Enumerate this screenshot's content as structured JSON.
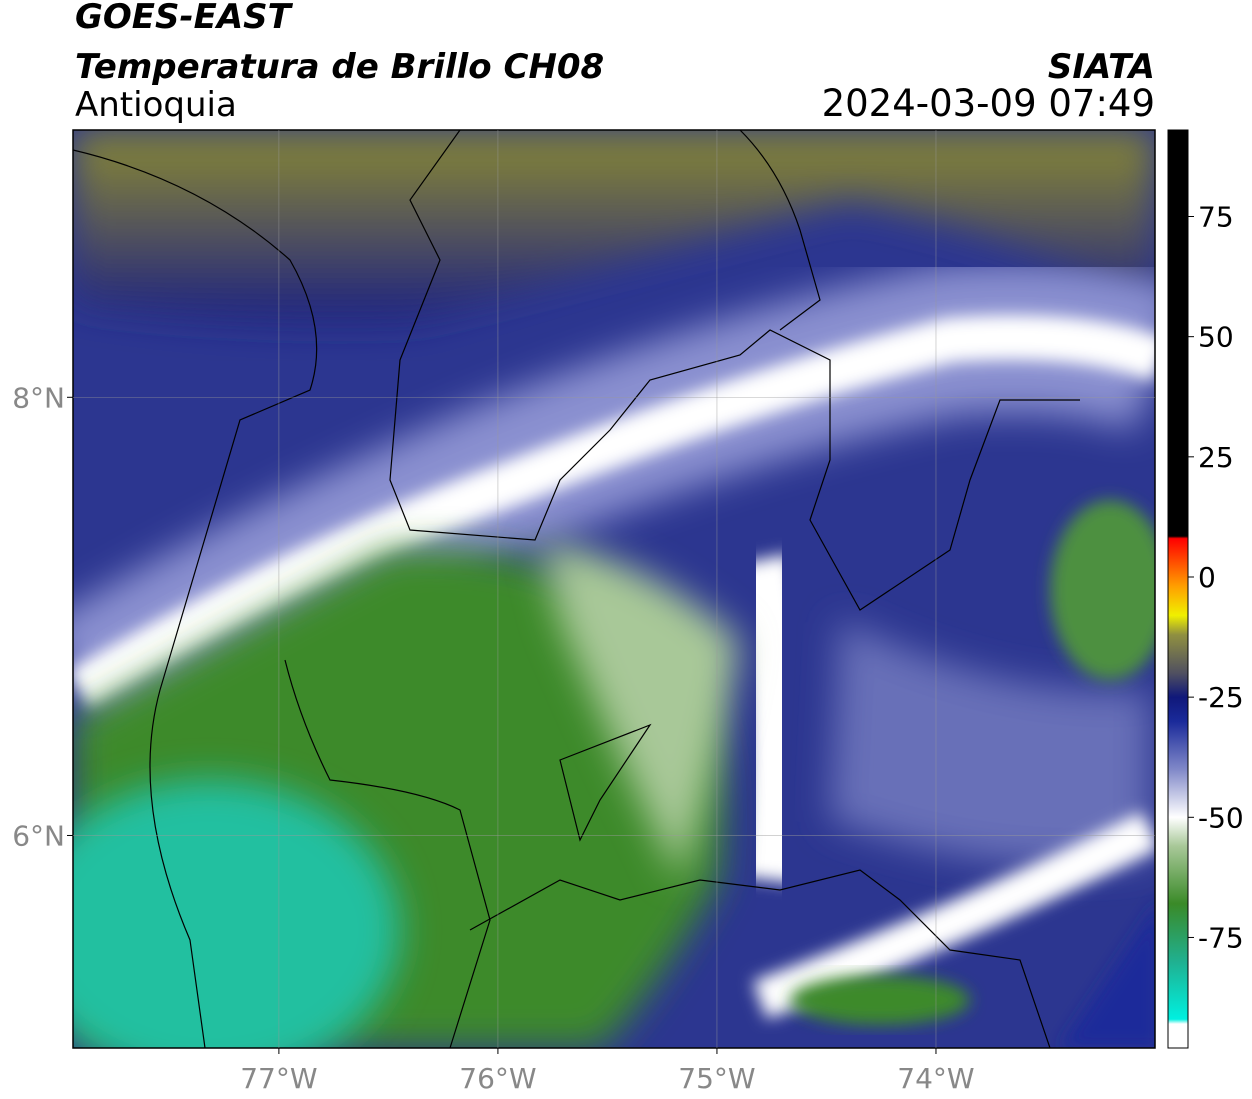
{
  "header": {
    "title": "GOES-EAST",
    "subtitle": "Temperatura de Brillo CH08",
    "region": "Antioquia",
    "source": "SIATA",
    "datetime": "2024-03-09 07:49"
  },
  "map": {
    "xlim": [
      -77.94,
      -73.0
    ],
    "ylim": [
      5.03,
      9.22
    ],
    "xticks": [
      {
        "value": -77,
        "label": "77°W"
      },
      {
        "value": -76,
        "label": "76°W"
      },
      {
        "value": -75,
        "label": "75°W"
      },
      {
        "value": -74,
        "label": "74°W"
      }
    ],
    "yticks": [
      {
        "value": 8,
        "label": "8°N"
      },
      {
        "value": 6,
        "label": "6°N"
      }
    ],
    "grid": true
  },
  "colorbar": {
    "lim": [
      -98,
      93
    ],
    "ticks": [
      75,
      50,
      25,
      0,
      -25,
      -50,
      -75
    ],
    "stops": [
      {
        "value": -98,
        "color": "#ffffff"
      },
      {
        "value": -93,
        "color": "#ffffff"
      },
      {
        "value": -92,
        "color": "#00f0e0"
      },
      {
        "value": -80,
        "color": "#20b090"
      },
      {
        "value": -68,
        "color": "#3a8a28"
      },
      {
        "value": -56,
        "color": "#a8c898"
      },
      {
        "value": -50,
        "color": "#ffffff"
      },
      {
        "value": -40,
        "color": "#8088c8"
      },
      {
        "value": -30,
        "color": "#1a2a9a"
      },
      {
        "value": -25,
        "color": "#10187a"
      },
      {
        "value": -20,
        "color": "#505060"
      },
      {
        "value": -12,
        "color": "#909040"
      },
      {
        "value": -8,
        "color": "#f0f000"
      },
      {
        "value": -2,
        "color": "#ffa000"
      },
      {
        "value": 4,
        "color": "#ff4000"
      },
      {
        "value": 8,
        "color": "#ff0000"
      },
      {
        "value": 8.5,
        "color": "#000000"
      },
      {
        "value": 93,
        "color": "#000000"
      }
    ]
  }
}
